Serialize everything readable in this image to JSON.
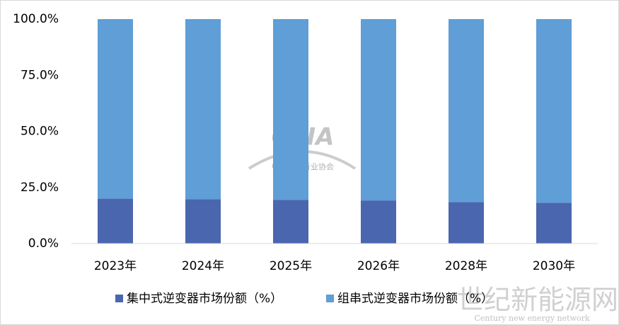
{
  "chart_data": {
    "type": "bar",
    "stacked": true,
    "categories": [
      "2023年",
      "2024年",
      "2025年",
      "2026年",
      "2028年",
      "2030年"
    ],
    "series": [
      {
        "name": "集中式逆变器市场份额（%）",
        "color": "#4a66ae",
        "values": [
          20.0,
          19.8,
          19.5,
          19.2,
          18.5,
          18.2
        ]
      },
      {
        "name": "组串式逆变器市场份额（%）",
        "color": "#5f9ed6",
        "values": [
          80.0,
          80.2,
          80.5,
          80.8,
          81.5,
          81.8
        ]
      }
    ],
    "ylim": [
      0,
      100
    ],
    "yticks": [
      {
        "value": 0,
        "label": "0.0%"
      },
      {
        "value": 25,
        "label": "25.0%"
      },
      {
        "value": 50,
        "label": "50.0%"
      },
      {
        "value": 75,
        "label": "75.0%"
      },
      {
        "value": 100,
        "label": "100.0%"
      }
    ],
    "grid": false,
    "legend": "bottom",
    "annotations": [
      "CPIA",
      "中国光伏行业协会",
      "世纪新能源网",
      "Century new energy network"
    ]
  }
}
